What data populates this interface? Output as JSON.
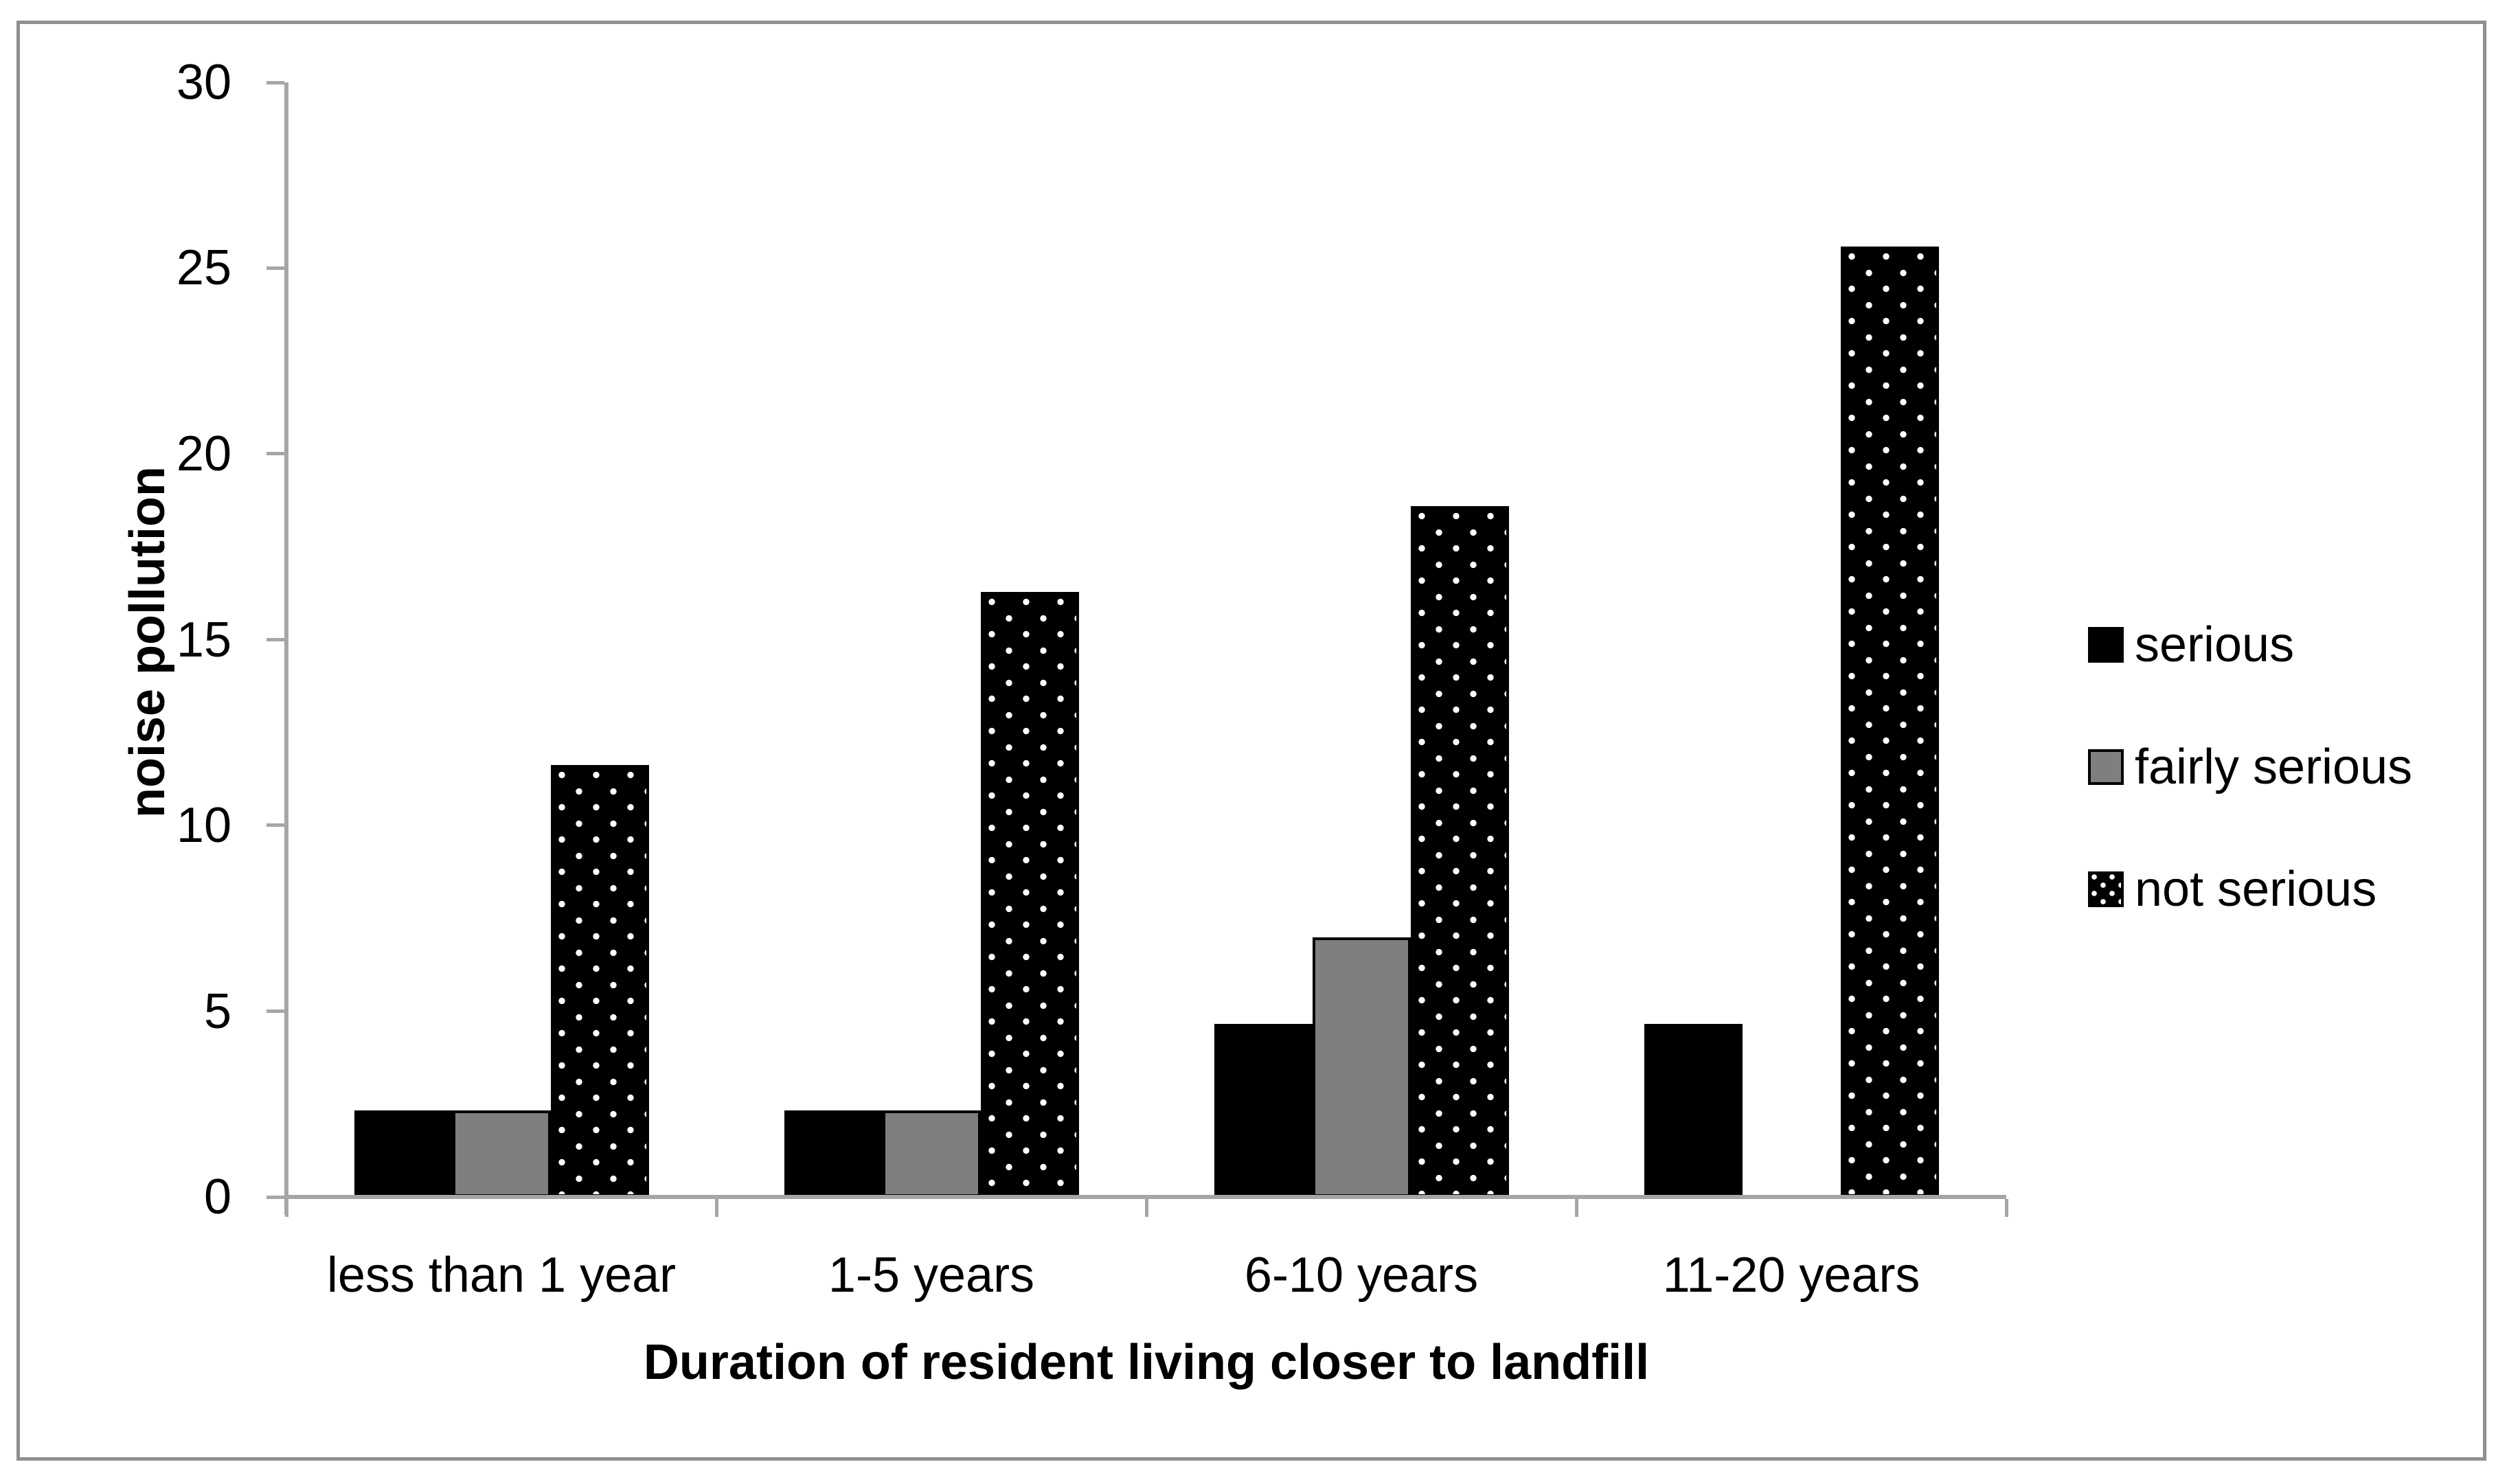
{
  "chart_data": {
    "type": "bar",
    "categories": [
      "less than 1 year",
      "1-5 years",
      "6-10 years",
      "11-20 years"
    ],
    "series": [
      {
        "name": "serious",
        "style": "solid-black",
        "color": "#000000",
        "values": [
          2.33,
          2.33,
          4.65,
          4.65
        ]
      },
      {
        "name": "fairly serious",
        "style": "gray-outlined",
        "color": "#7f7f7f",
        "values": [
          2.33,
          2.33,
          6.98,
          0
        ]
      },
      {
        "name": "not serious",
        "style": "black-white-dots",
        "color": "#000000",
        "values": [
          11.63,
          16.28,
          18.6,
          25.58
        ]
      }
    ],
    "xlabel": "Duration of resident living closer to landfill",
    "ylabel": "noise pollution",
    "ylim": [
      0,
      30
    ],
    "yticks": [
      0,
      5,
      10,
      15,
      20,
      25,
      30
    ],
    "grid": false,
    "legend_position": "right"
  },
  "colors": {
    "axis": "#a6a6a6",
    "frame_border": "#8f8f8f",
    "bar_gray": "#7f7f7f",
    "background": "#ffffff"
  }
}
